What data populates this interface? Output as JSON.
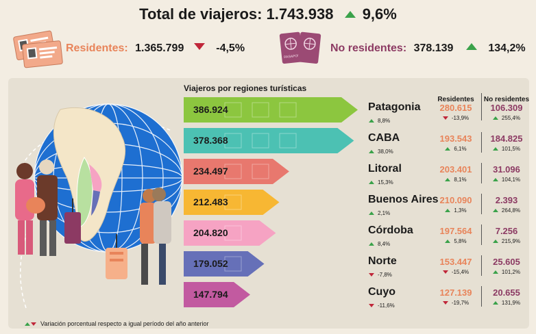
{
  "header": {
    "title": "Total de viajeros: 1.743.938",
    "title_change": "9,6%",
    "residents_label": "Residentes:",
    "residents_value": "1.365.799",
    "residents_change": "-4,5%",
    "nonresidents_label": "No residentes:",
    "nonresidents_value": "378.139",
    "nonresidents_change": "134,2%"
  },
  "icons": {
    "id_cards": "id-cards-icon",
    "passports": "passports-icon",
    "passport_text": "PASAPORTE",
    "globe": "globe-illustration",
    "travelers": "travelers-illustration"
  },
  "colors": {
    "up": "#3aa24a",
    "down": "#c0273a",
    "residents": "#e8845a",
    "nonresidents": "#8c3a63"
  },
  "chart_data": {
    "type": "bar",
    "title": "Viajeros por regiones turísticas",
    "column_headers": [
      "Residentes",
      "No residentes"
    ],
    "categories": [
      "Patagonia",
      "CABA",
      "Litoral",
      "Buenos Aires",
      "Córdoba",
      "Norte",
      "Cuyo"
    ],
    "values": [
      386924,
      378368,
      234497,
      212483,
      204820,
      179052,
      147794
    ],
    "value_labels": [
      "386.924",
      "378.368",
      "234.497",
      "212.483",
      "204.820",
      "179.052",
      "147.794"
    ],
    "bar_colors": [
      "#8cc63f",
      "#4cc1b3",
      "#e8786e",
      "#f7b733",
      "#f6a3c3",
      "#6670b8",
      "#c25aa0"
    ],
    "total_change": [
      "8,8%",
      "38,0%",
      "15,3%",
      "2,1%",
      "8,4%",
      "-7,8%",
      "-11,6%"
    ],
    "total_dir": [
      "up",
      "up",
      "up",
      "up",
      "up",
      "down",
      "down"
    ],
    "residents": [
      "280.615",
      "193.543",
      "203.401",
      "210.090",
      "197.564",
      "153.447",
      "127.139"
    ],
    "residents_change": [
      "-13,9%",
      "6,1%",
      "8,1%",
      "1,3%",
      "5,8%",
      "-15,4%",
      "-19,7%"
    ],
    "residents_dir": [
      "down",
      "up",
      "up",
      "up",
      "up",
      "down",
      "down"
    ],
    "nonresidents": [
      "106.309",
      "184.825",
      "31.096",
      "2.393",
      "7.256",
      "25.605",
      "20.655"
    ],
    "nonresidents_change": [
      "255,4%",
      "101,5%",
      "104,1%",
      "264,8%",
      "215,9%",
      "101,2%",
      "131,9%"
    ],
    "nonresidents_dir": [
      "up",
      "up",
      "up",
      "up",
      "up",
      "up",
      "up"
    ]
  },
  "footnote": "Variación porcentual respecto a igual período del año anterior"
}
